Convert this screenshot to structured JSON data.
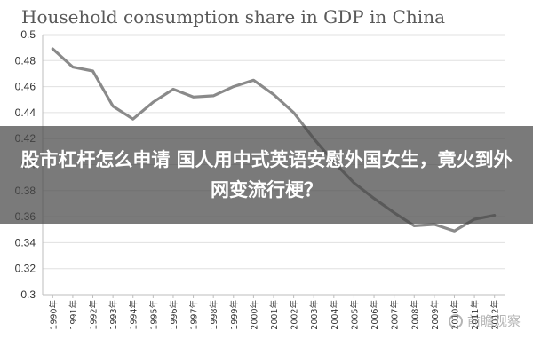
{
  "chart_data": {
    "type": "line",
    "title": "Household consumption share in GDP in China",
    "xlabel": "",
    "ylabel": "",
    "ylim": [
      0.3,
      0.5
    ],
    "yticks": [
      "0.5",
      "0.48",
      "0.46",
      "0.44",
      "0.42",
      "0.4",
      "0.38",
      "0.36",
      "0.34",
      "0.32",
      "0.3"
    ],
    "categories": [
      "1990年",
      "1991年",
      "1992年",
      "1993年",
      "1994年",
      "1995年",
      "1996年",
      "1997年",
      "1998年",
      "1999年",
      "2000年",
      "2001年",
      "2002年",
      "2003年",
      "2004年",
      "2005年",
      "2006年",
      "2007年",
      "2008年",
      "2009年",
      "2010年",
      "2011年",
      "2012年"
    ],
    "series": [
      {
        "values": [
          0.489,
          0.475,
          0.472,
          0.445,
          0.435,
          0.448,
          0.458,
          0.452,
          0.453,
          0.46,
          0.465,
          0.454,
          0.44,
          0.42,
          0.402,
          0.386,
          0.374,
          0.363,
          0.353,
          0.354,
          0.349,
          0.358,
          0.361
        ]
      }
    ],
    "grid": true,
    "line_color": "#8a8a8a"
  },
  "overlay": {
    "text": "股市杠杆怎么申请 国人用中式英语安慰外国女生，竟火到外网变流行梗？"
  },
  "watermark": {
    "text": "前瞻观察"
  }
}
